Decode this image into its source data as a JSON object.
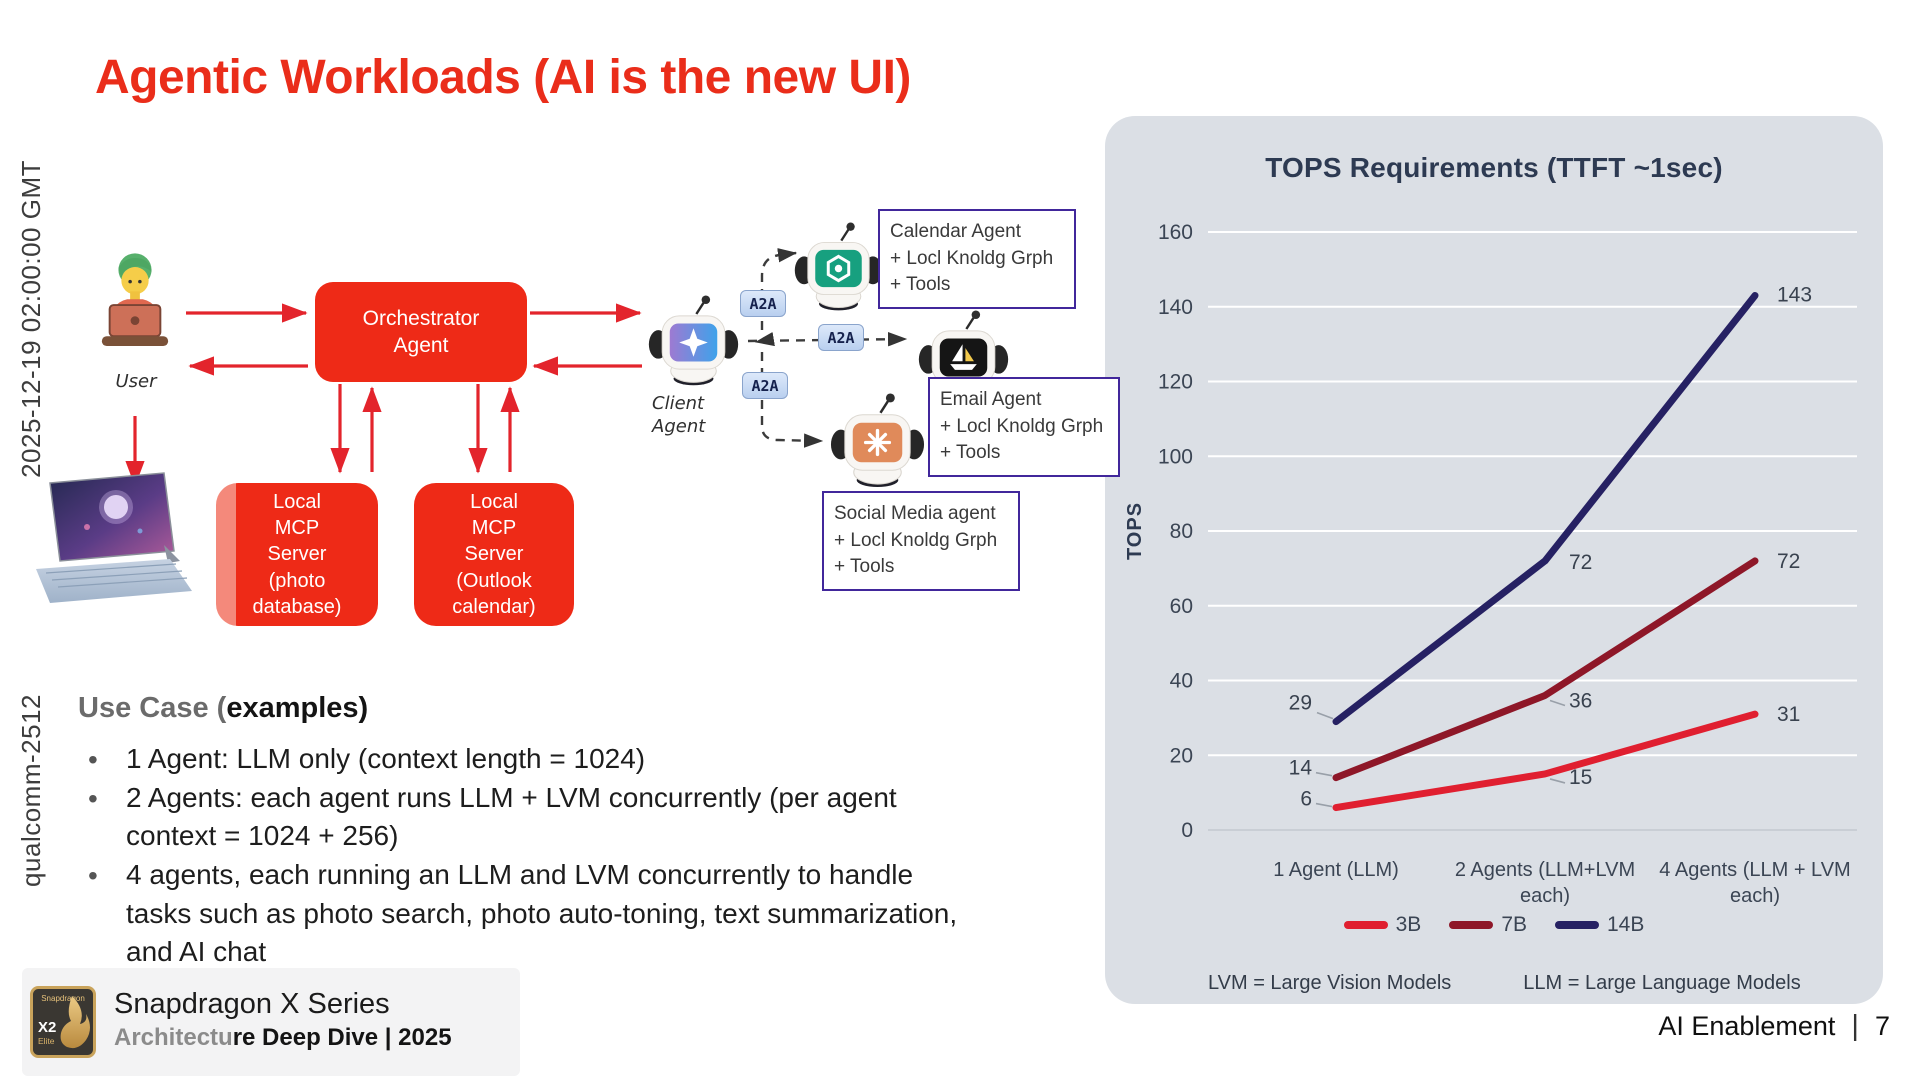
{
  "watermarks": {
    "timestamp": "2025-12-19 02:00:00 GMT",
    "id": "qualcomm-2512"
  },
  "title": "Agentic Workloads (AI is the new UI)",
  "diagram": {
    "user_label": "User",
    "orchestrator_label": "Orchestrator\nAgent",
    "mcp_photo_label": "Local\nMCP\nServer\n(photo\ndatabase)",
    "mcp_outlook_label": "Local\nMCP\nServer\n(Outlook\ncalendar)",
    "client_agent_label": "Client\nAgent",
    "a2a_labels": [
      "A2A",
      "A2A",
      "A2A"
    ],
    "calendar_agent_box": "Calendar Agent\n+ Locl Knoldg Grph\n + Tools",
    "email_agent_box": "Email Agent\n+ Locl Knoldg Grph\n + Tools",
    "social_agent_box": "Social Media agent\n+ Locl Knoldg Grph\n + Tools"
  },
  "use_case": {
    "heading_prefix": "Use Case (",
    "heading_emphasis": "examples",
    "heading_suffix": ")",
    "bullets": [
      "1 Agent: LLM only (context length = 1024)",
      "2 Agents: each agent runs LLM + LVM concurrently (per agent context = 1024 + 256)",
      "4 agents, each running an LLM and LVM concurrently to handle tasks such as photo search, photo auto-toning, text summarization, and AI chat"
    ]
  },
  "chart_data": {
    "type": "line",
    "title": "TOPS Requirements (TTFT ~1sec)",
    "ylabel": "TOPS",
    "ylim": [
      0,
      160
    ],
    "ytick_step": 20,
    "grid": true,
    "legend_position": "bottom",
    "categories": [
      "1 Agent (LLM)",
      "2 Agents (LLM+LVM each)",
      "4 Agents (LLM + LVM each)"
    ],
    "series": [
      {
        "name": "3B",
        "color": "#E01F30",
        "values": [
          6,
          15,
          31
        ]
      },
      {
        "name": "7B",
        "color": "#8E1728",
        "values": [
          14,
          36,
          72
        ]
      },
      {
        "name": "14B",
        "color": "#262163",
        "values": [
          29,
          72,
          143
        ]
      }
    ],
    "footnotes": [
      "LVM = Large Vision Models",
      "LLM = Large Language Models"
    ]
  },
  "footer": {
    "logo": {
      "brand": "Snapdragon",
      "model": "X2",
      "tier": "Elite"
    },
    "product": "Snapdragon X Series",
    "subtitle_gray": "Architectu",
    "subtitle_black": "re Deep Dive | 2025",
    "section": "AI Enablement",
    "divider": "|",
    "page": "7"
  }
}
